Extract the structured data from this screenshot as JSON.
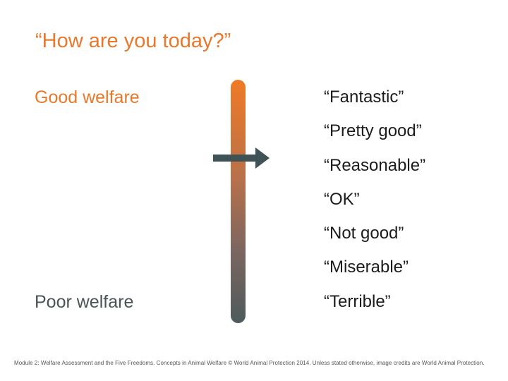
{
  "slide": {
    "title": "“How are you today?”"
  },
  "scale": {
    "top_label": "Good welfare",
    "bottom_label": "Poor welfare",
    "colors": {
      "top": "#ef7a26",
      "bottom": "#4e5b5c",
      "marker": "#3f5356"
    },
    "marker_icon": "right-arrow-icon"
  },
  "ratings": [
    "“Fantastic”",
    "“Pretty good”",
    "“Reasonable”",
    "“OK”",
    "“Not good”",
    "“Miserable”",
    "“Terrible”"
  ],
  "footer": {
    "text": "Module 2: Welfare Assessment and the Five Freedoms. Concepts in Animal Welfare © World Animal Protection 2014. Unless stated otherwise, image credits are World Animal Protection."
  }
}
